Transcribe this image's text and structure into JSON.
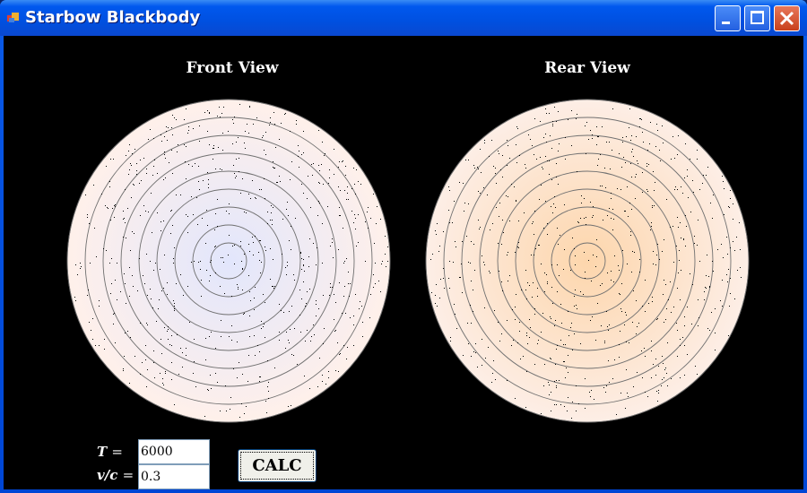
{
  "window": {
    "title": "Starbow Blackbody",
    "icon": "app-window-icon",
    "controls": [
      "minimize",
      "maximize",
      "close"
    ]
  },
  "views": [
    {
      "title": "Front View",
      "center_color": "#e2e6fc",
      "edge_color": "#fff0ea",
      "rings": 9
    },
    {
      "title": "Rear View",
      "center_color": "#fdd6ac",
      "edge_color": "#fdeee6",
      "rings": 9
    }
  ],
  "form": {
    "t_label": "T",
    "t_eq": "=",
    "t_value": "6000",
    "vc_label": "v/c",
    "vc_eq": "=",
    "vc_value": "0.3",
    "calc_label": "CALC"
  },
  "colors": {
    "background": "#000000",
    "ring": "#707070",
    "star": "#000000"
  }
}
